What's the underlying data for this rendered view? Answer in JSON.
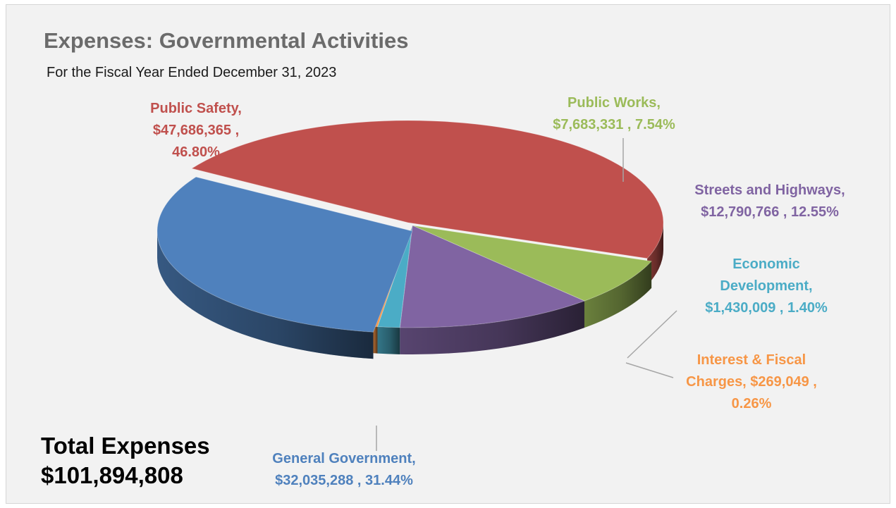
{
  "title": "Expenses: Governmental Activities",
  "subtitle": "For the Fiscal Year Ended December 31, 2023",
  "total": {
    "label": "Total Expenses",
    "value": "$101,894,808"
  },
  "chart_data": {
    "type": "pie",
    "style": "3d-exploded",
    "title": "Expenses: Governmental Activities",
    "subtitle": "For the Fiscal Year Ended December 31, 2023",
    "slices": [
      {
        "name": "Public Safety",
        "value": 47686365,
        "percent": 46.8,
        "color": "#c0504d",
        "label_lines": [
          "Public Safety,",
          "$47,686,365 ,",
          "46.80%"
        ]
      },
      {
        "name": "Public Works",
        "value": 7683331,
        "percent": 7.54,
        "color": "#9bbb59",
        "label_lines": [
          "Public Works,",
          "$7,683,331 , 7.54%"
        ]
      },
      {
        "name": "Streets and Highways",
        "value": 12790766,
        "percent": 12.55,
        "color": "#8064a2",
        "label_lines": [
          "Streets and Highways,",
          "$12,790,766 , 12.55%"
        ]
      },
      {
        "name": "Economic Development",
        "value": 1430009,
        "percent": 1.4,
        "color": "#4bacc6",
        "label_lines": [
          "Economic",
          "Development,",
          "$1,430,009 , 1.40%"
        ]
      },
      {
        "name": "Interest & Fiscal Charges",
        "value": 269049,
        "percent": 0.26,
        "color": "#f79646",
        "label_lines": [
          "Interest & Fiscal",
          "Charges, $269,049 ,",
          "0.26%"
        ]
      },
      {
        "name": "General Government",
        "value": 32035288,
        "percent": 31.44,
        "color": "#4f81bd",
        "label_lines": [
          "General Government,",
          "$32,035,288 , 31.44%"
        ]
      }
    ],
    "total_value": 101894808,
    "legend": "none (data labels on slices)"
  }
}
